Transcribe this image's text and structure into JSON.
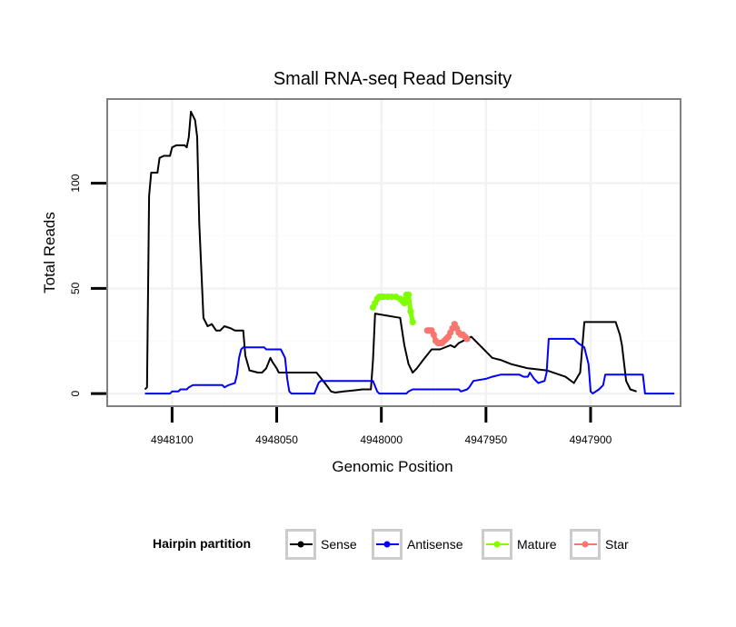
{
  "chart_data": {
    "type": "line",
    "title": "Small RNA-seq Read Density",
    "xlabel": "Genomic Position",
    "ylabel": "Total Reads",
    "x_reversed": true,
    "xlim": [
      4948131,
      4947857
    ],
    "ylim": [
      -6,
      140
    ],
    "xticks": [
      4948100,
      4948050,
      4948000,
      4947950,
      4947900
    ],
    "xtick_labels": [
      "4948100",
      "4948050",
      "4948000",
      "4947950",
      "4947900"
    ],
    "yticks": [
      0,
      50,
      100
    ],
    "ytick_labels": [
      "0",
      "50",
      "100"
    ],
    "grid": true,
    "legend": {
      "title": "Hairpin partition",
      "position": "bottom",
      "entries": [
        "Sense",
        "Antisense",
        "Mature",
        "Star"
      ]
    },
    "series": [
      {
        "name": "Sense",
        "color": "#000000",
        "style": "line",
        "points": [
          [
            4948113,
            2
          ],
          [
            4948112,
            3
          ],
          [
            4948111,
            94
          ],
          [
            4948110,
            105
          ],
          [
            4948107,
            105
          ],
          [
            4948106,
            112
          ],
          [
            4948104,
            113
          ],
          [
            4948101,
            113
          ],
          [
            4948100,
            117
          ],
          [
            4948098,
            118
          ],
          [
            4948094,
            118
          ],
          [
            4948093,
            117
          ],
          [
            4948092,
            122
          ],
          [
            4948091,
            134
          ],
          [
            4948089,
            130
          ],
          [
            4948088,
            122
          ],
          [
            4948087,
            81
          ],
          [
            4948085,
            36
          ],
          [
            4948083,
            32
          ],
          [
            4948081,
            33
          ],
          [
            4948079,
            30
          ],
          [
            4948077,
            30
          ],
          [
            4948075,
            32
          ],
          [
            4948072,
            31
          ],
          [
            4948070,
            30
          ],
          [
            4948066,
            30
          ],
          [
            4948065,
            18
          ],
          [
            4948063,
            11
          ],
          [
            4948059,
            10
          ],
          [
            4948057,
            10
          ],
          [
            4948055,
            12
          ],
          [
            4948053,
            17
          ],
          [
            4948052,
            15
          ],
          [
            4948050,
            12
          ],
          [
            4948049,
            10
          ],
          [
            4948044,
            10
          ],
          [
            4948031,
            10
          ],
          [
            4948027,
            5
          ],
          [
            4948024,
            1
          ],
          [
            4948022,
            0.5
          ],
          [
            4948018,
            1
          ],
          [
            4948013,
            1.5
          ],
          [
            4948009,
            2
          ],
          [
            4948005,
            2
          ],
          [
            4948004,
            16
          ],
          [
            4948003,
            38
          ],
          [
            4947991,
            36
          ],
          [
            4947989,
            23
          ],
          [
            4947987,
            14
          ],
          [
            4947985,
            10
          ],
          [
            4947983,
            12
          ],
          [
            4947980,
            16
          ],
          [
            4947976,
            21
          ],
          [
            4947972,
            21
          ],
          [
            4947967,
            23
          ],
          [
            4947965,
            22
          ],
          [
            4947963,
            24
          ],
          [
            4947961,
            25
          ],
          [
            4947959,
            26
          ],
          [
            4947957,
            27
          ],
          [
            4947956,
            26
          ],
          [
            4947950,
            20
          ],
          [
            4947947,
            17
          ],
          [
            4947943,
            16
          ],
          [
            4947938,
            14
          ],
          [
            4947934,
            13
          ],
          [
            4947930,
            12
          ],
          [
            4947921,
            11
          ],
          [
            4947912,
            8
          ],
          [
            4947908,
            5
          ],
          [
            4947905,
            10
          ],
          [
            4947903,
            34
          ],
          [
            4947888,
            34
          ],
          [
            4947886,
            28
          ],
          [
            4947885,
            23
          ],
          [
            4947883,
            6
          ],
          [
            4947881,
            2
          ],
          [
            4947878,
            1
          ]
        ]
      },
      {
        "name": "Antisense",
        "color": "#0000FF",
        "style": "line",
        "points": [
          [
            4948113,
            0
          ],
          [
            4948101,
            0
          ],
          [
            4948100,
            1
          ],
          [
            4948097,
            1
          ],
          [
            4948096,
            2
          ],
          [
            4948093,
            2
          ],
          [
            4948092,
            3
          ],
          [
            4948090,
            4
          ],
          [
            4948076,
            4
          ],
          [
            4948075,
            3
          ],
          [
            4948073,
            4
          ],
          [
            4948070,
            5
          ],
          [
            4948069,
            9
          ],
          [
            4948068,
            17
          ],
          [
            4948067,
            21
          ],
          [
            4948066,
            22
          ],
          [
            4948056,
            22
          ],
          [
            4948055,
            21
          ],
          [
            4948048,
            21
          ],
          [
            4948046,
            17
          ],
          [
            4948045,
            7
          ],
          [
            4948044,
            1
          ],
          [
            4948043,
            0
          ],
          [
            4948032,
            0
          ],
          [
            4948030,
            5
          ],
          [
            4948029,
            6
          ],
          [
            4948004,
            6
          ],
          [
            4948002,
            1
          ],
          [
            4948001,
            0
          ],
          [
            4947988,
            0
          ],
          [
            4947987,
            1
          ],
          [
            4947985,
            2
          ],
          [
            4947963,
            2
          ],
          [
            4947962,
            1
          ],
          [
            4947959,
            2
          ],
          [
            4947958,
            3
          ],
          [
            4947956,
            6
          ],
          [
            4947950,
            7
          ],
          [
            4947947,
            8
          ],
          [
            4947943,
            9
          ],
          [
            4947934,
            9
          ],
          [
            4947932,
            8
          ],
          [
            4947930,
            8
          ],
          [
            4947929,
            10
          ],
          [
            4947927,
            7
          ],
          [
            4947925,
            5
          ],
          [
            4947922,
            6
          ],
          [
            4947921,
            10
          ],
          [
            4947920,
            26
          ],
          [
            4947908,
            26
          ],
          [
            4947906,
            24
          ],
          [
            4947903,
            22
          ],
          [
            4947901,
            14
          ],
          [
            4947900,
            1
          ],
          [
            4947899,
            0
          ],
          [
            4947896,
            2
          ],
          [
            4947894,
            4
          ],
          [
            4947893,
            9
          ],
          [
            4947875,
            9
          ],
          [
            4947874,
            0
          ],
          [
            4947860,
            0
          ]
        ]
      },
      {
        "name": "Mature",
        "color": "#7FFF00",
        "style": "points",
        "points": [
          [
            4948004,
            41
          ],
          [
            4948003,
            43
          ],
          [
            4948002,
            45
          ],
          [
            4948001,
            46
          ],
          [
            4948000,
            46
          ],
          [
            4947999,
            46
          ],
          [
            4947997,
            46
          ],
          [
            4947995,
            46
          ],
          [
            4947993,
            46
          ],
          [
            4947991,
            45
          ],
          [
            4947990,
            44
          ],
          [
            4947989,
            43
          ],
          [
            4947988,
            47
          ],
          [
            4947987,
            47
          ],
          [
            4947986,
            39
          ],
          [
            4947985,
            34
          ]
        ]
      },
      {
        "name": "Star",
        "color": "#F8766D",
        "style": "points",
        "points": [
          [
            4947978,
            30
          ],
          [
            4947977,
            30
          ],
          [
            4947976,
            30
          ],
          [
            4947975,
            28
          ],
          [
            4947974,
            25
          ],
          [
            4947973,
            24
          ],
          [
            4947972,
            24
          ],
          [
            4947971,
            24
          ],
          [
            4947970,
            25
          ],
          [
            4947969,
            26
          ],
          [
            4947968,
            27
          ],
          [
            4947967,
            29
          ],
          [
            4947966,
            31
          ],
          [
            4947965,
            33
          ],
          [
            4947964,
            31
          ],
          [
            4947963,
            29
          ],
          [
            4947962,
            28
          ],
          [
            4947961,
            28
          ],
          [
            4947960,
            27
          ],
          [
            4947959,
            26
          ]
        ]
      }
    ]
  }
}
